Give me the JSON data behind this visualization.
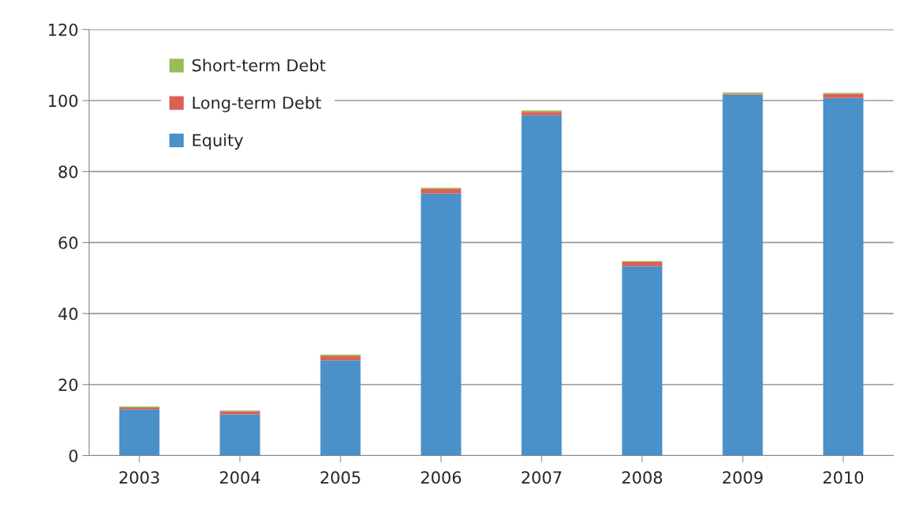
{
  "chart_data": {
    "type": "bar",
    "stacked": true,
    "categories": [
      "2003",
      "2004",
      "2005",
      "2006",
      "2007",
      "2008",
      "2009",
      "2010"
    ],
    "series": [
      {
        "name": "Equity",
        "color": "#4a90c9",
        "values": [
          13.0,
          11.6,
          26.8,
          73.8,
          95.8,
          53.3,
          101.6,
          100.7
        ]
      },
      {
        "name": "Long-term Debt",
        "color": "#dc6058",
        "values": [
          0.5,
          0.8,
          1.2,
          1.2,
          1.0,
          1.2,
          0.3,
          1.2
        ]
      },
      {
        "name": "Short-term Debt",
        "color": "#9bbb59",
        "values": [
          0.3,
          0.3,
          0.4,
          0.4,
          0.4,
          0.3,
          0.4,
          0.3
        ]
      }
    ],
    "ylim": [
      0,
      120
    ],
    "yticks": [
      0,
      20,
      40,
      60,
      80,
      100,
      120
    ],
    "grid": "y",
    "legend": "top left"
  }
}
